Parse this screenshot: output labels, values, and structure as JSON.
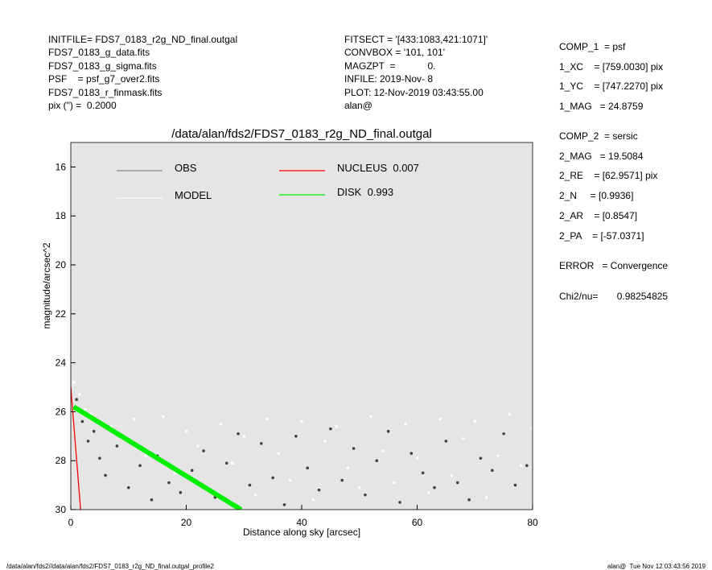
{
  "header": {
    "left": [
      "INITFILE= FDS7_0183_r2g_ND_final.outgal",
      "FDS7_0183_g_data.fits",
      "FDS7_0183_g_sigma.fits",
      "PSF    = psf_g7_over2.fits",
      "FDS7_0183_r_finmask.fits",
      "pix (\") =  0.2000"
    ],
    "middle": [
      "FITSECT = '[433:1083,421:1071]'",
      "CONVBOX = '101, 101'",
      "MAGZPT  =            0.",
      "INFILE: 2019-Nov- 8",
      "PLOT: 12-Nov-2019 03:43:55.00",
      "alan@"
    ],
    "right": [
      "COMP_1  = psf",
      "1_XC    = [759.0030] pix",
      "1_YC    = [747.2270] pix",
      "1_MAG   = 24.8759",
      "COMP_2  = sersic",
      "2_MAG   = 19.5084",
      "2_RE    = [62.9571] pix",
      "2_N     = [0.9936]",
      "2_AR    = [0.8547]",
      "2_PA    = [-57.0371]",
      "ERROR   = Convergence",
      "Chi2/nu=       0.98254825"
    ]
  },
  "chart_data": {
    "type": "scatter",
    "title": "/data/alan/fds2/FDS7_0183_r2g_ND_final.outgal",
    "x_label": "Distance along sky [arcsec]",
    "y_label": "magnitude/arcsec^2",
    "xlim": [
      0,
      80
    ],
    "xticks": [
      0,
      20,
      40,
      60,
      80
    ],
    "ylim": [
      30,
      15
    ],
    "yticks": [
      16,
      18,
      20,
      22,
      24,
      26,
      28,
      30
    ],
    "background": "#e5e5e5",
    "series": [
      {
        "name": "OBS",
        "color": "#8c8c8c",
        "point_color": "#404040",
        "mode": "points",
        "x": [
          1,
          2,
          3,
          4,
          5,
          6,
          8,
          10,
          12,
          14,
          15,
          17,
          19,
          21,
          23,
          25,
          27,
          29,
          31,
          33,
          35,
          37,
          39,
          41,
          43,
          45,
          47,
          49,
          51,
          53,
          55,
          57,
          59,
          61,
          63,
          65,
          67,
          69,
          71,
          73,
          75,
          77,
          79
        ],
        "values": [
          25.5,
          26.4,
          27.2,
          26.8,
          27.9,
          28.6,
          27.4,
          29.1,
          28.2,
          29.6,
          27.8,
          28.9,
          29.3,
          28.4,
          27.6,
          29.5,
          28.1,
          26.9,
          29.0,
          27.3,
          28.7,
          29.8,
          27.0,
          28.3,
          29.2,
          26.7,
          28.8,
          27.5,
          29.4,
          28.0,
          26.8,
          29.7,
          27.7,
          28.5,
          29.1,
          27.2,
          28.9,
          29.6,
          27.9,
          28.4,
          26.9,
          29.0,
          28.2
        ]
      },
      {
        "name": "MODEL",
        "color": "#ffffff",
        "point_color": "#ffffff",
        "mode": "points",
        "x": [
          0.5,
          1.5,
          2.5,
          3.5,
          5,
          7,
          9,
          11,
          13,
          16,
          18,
          20,
          22,
          24,
          26,
          28,
          30,
          32,
          34,
          36,
          38,
          40,
          42,
          44,
          46,
          48,
          50,
          52,
          54,
          56,
          58,
          60,
          62,
          64,
          66,
          68,
          70,
          72,
          74,
          76,
          78,
          80
        ],
        "values": [
          24.8,
          25.3,
          25.9,
          26.1,
          26.4,
          26.6,
          27.1,
          26.3,
          27.8,
          26.2,
          28.5,
          26.8,
          27.4,
          29.2,
          26.5,
          28.1,
          27.0,
          29.4,
          26.3,
          27.7,
          28.8,
          26.4,
          29.6,
          27.2,
          26.6,
          28.3,
          29.1,
          26.2,
          27.6,
          28.9,
          26.5,
          27.9,
          29.3,
          26.3,
          28.6,
          27.1,
          26.4,
          29.5,
          27.8,
          26.1,
          28.2,
          26.7
        ]
      },
      {
        "name": "NUCLEUS  0.007",
        "color": "#ff0000",
        "mode": "line",
        "x": [
          0,
          1.7
        ],
        "values": [
          25.0,
          30
        ]
      },
      {
        "name": "DISK  0.993",
        "color": "#00ee00",
        "mode": "band",
        "x": [
          0.5,
          29.5
        ],
        "values": [
          25.8,
          30
        ]
      }
    ]
  },
  "footer": {
    "left": "/data/alan/fds2//data/alan/fds2/FDS7_0183_r2g_ND_final.outgal_profile2",
    "right": "alan@  Tue Nov 12 03:43:56 2019"
  }
}
